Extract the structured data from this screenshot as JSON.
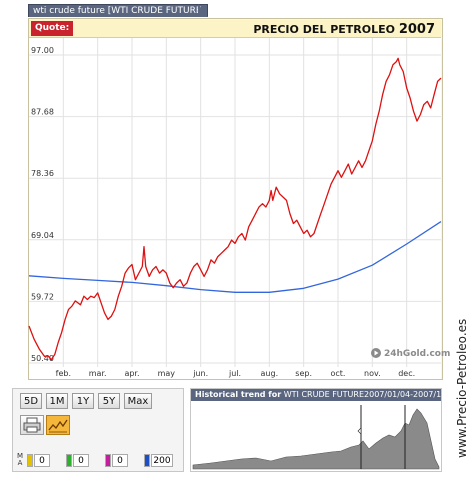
{
  "header": {
    "tab_label": "wti crude future [WTI CRUDE FUTURE",
    "quote_label": "Quote:",
    "chart_title_main": "PRECIO DEL PETROLEO",
    "chart_title_year": "2007"
  },
  "chart_data": {
    "type": "line",
    "title": "PRECIO DEL PETROLEO 2007",
    "y_ticks": [
      "97.00",
      "87.68",
      "78.36",
      "69.04",
      "59.72",
      "50.40"
    ],
    "ylim": [
      50.4,
      97.0
    ],
    "x_ticks": [
      "feb.",
      "mar.",
      "apr.",
      "may",
      "jun.",
      "jul.",
      "aug.",
      "sep.",
      "oct.",
      "nov.",
      "dec."
    ],
    "x_months": [
      1,
      2,
      3,
      4,
      5,
      6,
      7,
      8,
      9,
      10,
      11
    ],
    "xlim": [
      0,
      12
    ],
    "grid": true,
    "watermark": "24hGold.com",
    "series": [
      {
        "color": "#dd1111",
        "points": [
          [
            0.0,
            56.0
          ],
          [
            0.15,
            54.0
          ],
          [
            0.3,
            52.5
          ],
          [
            0.45,
            51.4
          ],
          [
            0.55,
            51.5
          ],
          [
            0.65,
            50.9
          ],
          [
            0.75,
            51.7
          ],
          [
            0.85,
            53.5
          ],
          [
            0.95,
            55.0
          ],
          [
            1.05,
            57.0
          ],
          [
            1.15,
            58.5
          ],
          [
            1.25,
            59.0
          ],
          [
            1.35,
            59.8
          ],
          [
            1.5,
            59.2
          ],
          [
            1.6,
            60.5
          ],
          [
            1.7,
            60.0
          ],
          [
            1.8,
            60.5
          ],
          [
            1.9,
            60.3
          ],
          [
            2.0,
            61.0
          ],
          [
            2.1,
            59.5
          ],
          [
            2.2,
            58.0
          ],
          [
            2.3,
            57.0
          ],
          [
            2.4,
            57.5
          ],
          [
            2.5,
            58.5
          ],
          [
            2.6,
            60.5
          ],
          [
            2.7,
            62.0
          ],
          [
            2.8,
            64.0
          ],
          [
            2.9,
            64.8
          ],
          [
            3.0,
            65.3
          ],
          [
            3.1,
            63.0
          ],
          [
            3.2,
            64.0
          ],
          [
            3.3,
            65.0
          ],
          [
            3.35,
            68.0
          ],
          [
            3.4,
            65.0
          ],
          [
            3.5,
            63.5
          ],
          [
            3.6,
            64.5
          ],
          [
            3.7,
            65.0
          ],
          [
            3.8,
            64.0
          ],
          [
            3.9,
            64.5
          ],
          [
            4.0,
            64.0
          ],
          [
            4.1,
            62.5
          ],
          [
            4.2,
            61.8
          ],
          [
            4.3,
            62.5
          ],
          [
            4.4,
            63.0
          ],
          [
            4.5,
            62.0
          ],
          [
            4.6,
            62.5
          ],
          [
            4.7,
            64.0
          ],
          [
            4.8,
            65.0
          ],
          [
            4.9,
            65.5
          ],
          [
            5.0,
            64.5
          ],
          [
            5.1,
            63.5
          ],
          [
            5.2,
            64.5
          ],
          [
            5.3,
            66.0
          ],
          [
            5.4,
            65.5
          ],
          [
            5.5,
            66.5
          ],
          [
            5.6,
            67.0
          ],
          [
            5.7,
            67.5
          ],
          [
            5.8,
            68.0
          ],
          [
            5.9,
            69.0
          ],
          [
            6.0,
            68.5
          ],
          [
            6.1,
            69.5
          ],
          [
            6.2,
            70.0
          ],
          [
            6.3,
            69.0
          ],
          [
            6.4,
            71.0
          ],
          [
            6.5,
            72.0
          ],
          [
            6.6,
            73.0
          ],
          [
            6.7,
            74.0
          ],
          [
            6.8,
            74.5
          ],
          [
            6.9,
            74.0
          ],
          [
            7.0,
            75.0
          ],
          [
            7.05,
            76.5
          ],
          [
            7.1,
            75.0
          ],
          [
            7.2,
            77.0
          ],
          [
            7.3,
            76.0
          ],
          [
            7.4,
            75.5
          ],
          [
            7.5,
            75.0
          ],
          [
            7.6,
            73.0
          ],
          [
            7.7,
            71.5
          ],
          [
            7.8,
            72.0
          ],
          [
            7.9,
            71.0
          ],
          [
            8.0,
            70.0
          ],
          [
            8.1,
            70.5
          ],
          [
            8.2,
            69.5
          ],
          [
            8.3,
            70.0
          ],
          [
            8.4,
            71.5
          ],
          [
            8.5,
            73.0
          ],
          [
            8.6,
            74.5
          ],
          [
            8.7,
            76.0
          ],
          [
            8.8,
            77.5
          ],
          [
            8.9,
            78.5
          ],
          [
            9.0,
            79.5
          ],
          [
            9.1,
            78.5
          ],
          [
            9.2,
            79.5
          ],
          [
            9.3,
            80.5
          ],
          [
            9.4,
            79.0
          ],
          [
            9.5,
            80.0
          ],
          [
            9.6,
            81.0
          ],
          [
            9.7,
            80.0
          ],
          [
            9.8,
            81.0
          ],
          [
            9.9,
            82.5
          ],
          [
            10.0,
            84.0
          ],
          [
            10.1,
            86.5
          ],
          [
            10.2,
            88.5
          ],
          [
            10.3,
            91.0
          ],
          [
            10.4,
            93.0
          ],
          [
            10.5,
            94.0
          ],
          [
            10.6,
            95.5
          ],
          [
            10.7,
            96.0
          ],
          [
            10.75,
            96.5
          ],
          [
            10.8,
            95.5
          ],
          [
            10.9,
            94.5
          ],
          [
            11.0,
            92.0
          ],
          [
            11.1,
            90.5
          ],
          [
            11.2,
            88.5
          ],
          [
            11.3,
            87.0
          ],
          [
            11.4,
            88.0
          ],
          [
            11.5,
            89.5
          ],
          [
            11.6,
            90.0
          ],
          [
            11.7,
            89.0
          ],
          [
            11.8,
            91.0
          ],
          [
            11.9,
            93.0
          ],
          [
            12.0,
            93.5
          ]
        ]
      },
      {
        "color": "#3366dd",
        "points": [
          [
            0.0,
            63.6
          ],
          [
            1.0,
            63.2
          ],
          [
            2.0,
            62.9
          ],
          [
            3.0,
            62.6
          ],
          [
            4.0,
            62.1
          ],
          [
            5.0,
            61.5
          ],
          [
            6.0,
            61.1
          ],
          [
            7.0,
            61.1
          ],
          [
            8.0,
            61.7
          ],
          [
            9.0,
            63.1
          ],
          [
            10.0,
            65.2
          ],
          [
            11.0,
            68.4
          ],
          [
            12.0,
            71.8
          ]
        ]
      }
    ]
  },
  "controls": {
    "period_buttons": [
      "5D",
      "1M",
      "1Y",
      "5Y",
      "Max"
    ],
    "ma_label": "MA",
    "ma_values": [
      "0",
      "0",
      "0",
      "200"
    ],
    "ma_colors": [
      "#e2c200",
      "#2db02d",
      "#c41e9e",
      "#1e4fc4"
    ]
  },
  "history": {
    "title_prefix": "Historical trend for",
    "title_name": "WTI CRUDE FUTURE",
    "title_dates": "2007/01/04-2007/12/25"
  },
  "sidebar": {
    "site_name": "www.Precio-Petroleo.es"
  }
}
